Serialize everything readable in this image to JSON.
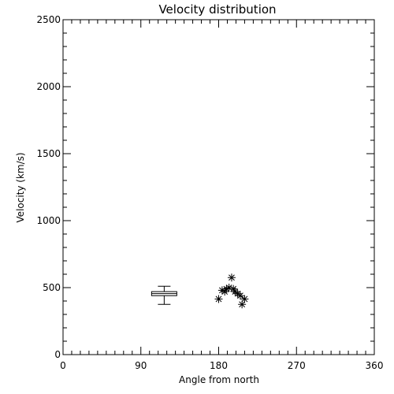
{
  "chart_data": {
    "type": "scatter",
    "title": "Velocity distribution",
    "xlabel": "Angle from north",
    "ylabel": "Velocity (km/s)",
    "xlim": [
      0,
      360
    ],
    "ylim": [
      0,
      2500
    ],
    "x_ticks": [
      0,
      90,
      180,
      270,
      360
    ],
    "y_ticks": [
      0,
      500,
      1000,
      1500,
      2000,
      2500
    ],
    "x_tick_labels": [
      "0",
      "90",
      "180",
      "270",
      "360"
    ],
    "y_tick_labels": [
      "0",
      "500",
      "1000",
      "1500",
      "2000",
      "2500"
    ],
    "x_minor_step": 10,
    "y_minor_step": 100,
    "grid": false,
    "boxplot": {
      "x": 117,
      "whisker_low": 375,
      "q1": 440,
      "median": 455,
      "q3": 470,
      "whisker_high": 510
    },
    "points": [
      {
        "x": 180,
        "y": 415
      },
      {
        "x": 184,
        "y": 480
      },
      {
        "x": 187,
        "y": 470
      },
      {
        "x": 189,
        "y": 490
      },
      {
        "x": 192,
        "y": 500
      },
      {
        "x": 195,
        "y": 575
      },
      {
        "x": 197,
        "y": 490
      },
      {
        "x": 199,
        "y": 470
      },
      {
        "x": 202,
        "y": 455
      },
      {
        "x": 205,
        "y": 440
      },
      {
        "x": 207,
        "y": 375
      },
      {
        "x": 210,
        "y": 415
      }
    ]
  }
}
